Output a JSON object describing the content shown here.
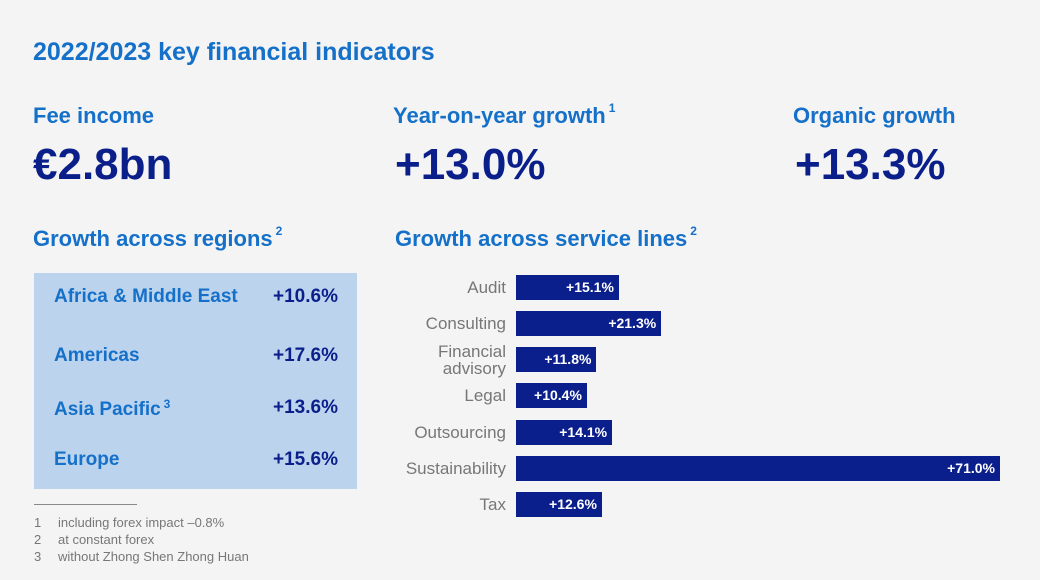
{
  "title": "2022/2023 key financial indicators",
  "kpis": [
    {
      "label": "Fee income",
      "sup": "",
      "value": "€2.8bn"
    },
    {
      "label": "Year-on-year growth",
      "sup": "1",
      "value": "+13.0%"
    },
    {
      "label": "Organic growth",
      "sup": "",
      "value": "+13.3%"
    }
  ],
  "regions": {
    "heading": "Growth across regions",
    "sup": "2",
    "rows": [
      {
        "name": "Africa & Middle East",
        "sup": "",
        "value": "+10.6%"
      },
      {
        "name": "Americas",
        "sup": "",
        "value": "+17.6%"
      },
      {
        "name": "Asia Pacific",
        "sup": "3",
        "value": "+13.6%"
      },
      {
        "name": "Europe",
        "sup": "",
        "value": "+15.6%"
      }
    ]
  },
  "footnotes": [
    {
      "num": "1",
      "text": "including forex impact –0.8%"
    },
    {
      "num": "2",
      "text": "at constant forex"
    },
    {
      "num": "3",
      "text": "without Zhong Shen Zhong Huan"
    }
  ],
  "colors": {
    "accent": "#1470c8",
    "navy": "#0b1f8c",
    "box": "#bcd3ee"
  },
  "chart_data": {
    "type": "bar",
    "orientation": "horizontal",
    "title": "Growth across service lines",
    "title_sup": "2",
    "categories": [
      "Audit",
      "Consulting",
      "Financial advisory",
      "Legal",
      "Outsourcing",
      "Sustainability",
      "Tax"
    ],
    "values": [
      15.1,
      21.3,
      11.8,
      10.4,
      14.1,
      71.0,
      12.6
    ],
    "data_labels": [
      "+15.1%",
      "+21.3%",
      "+11.8%",
      "+10.4%",
      "+14.1%",
      "+71.0%",
      "+12.6%"
    ],
    "unit": "%",
    "grid": false
  }
}
